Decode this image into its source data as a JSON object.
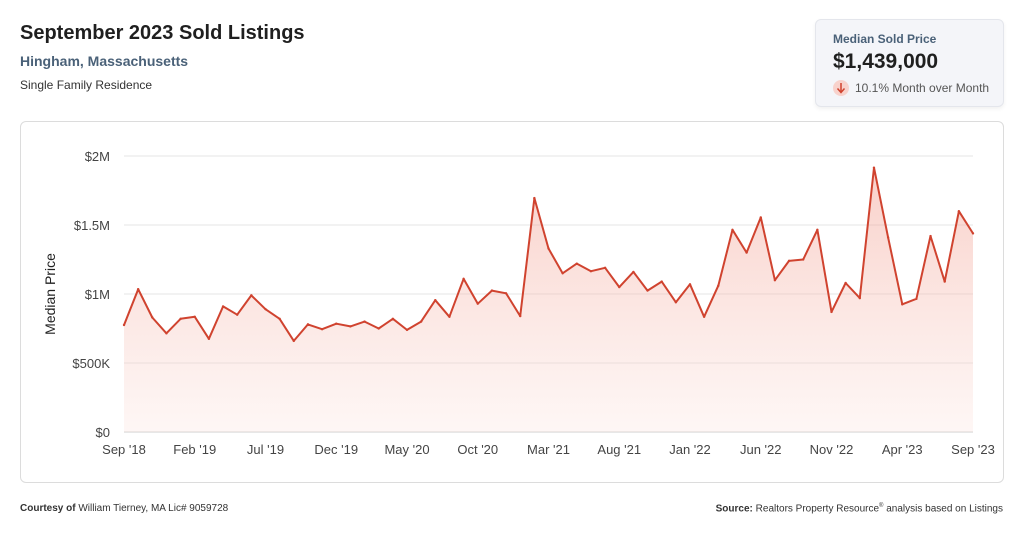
{
  "header": {
    "title": "September 2023 Sold Listings",
    "location": "Hingham, Massachusetts",
    "category": "Single Family Residence"
  },
  "kpi": {
    "label": "Median Sold Price",
    "value": "$1,439,000",
    "change": "10.1% Month over Month",
    "direction": "down",
    "icon": "arrow-down-icon"
  },
  "footer": {
    "courtesy_label": "Courtesy of",
    "courtesy_text": "William Tierney, MA Lic# 9059728",
    "source_label": "Source:",
    "source_text": "Realtors Property Resource",
    "source_mark": "®",
    "source_suffix": "analysis based on Listings"
  },
  "colors": {
    "line": "#d0432f",
    "fill": "#f6c9c1",
    "accent_text": "#4a6178"
  },
  "chart_data": {
    "type": "area",
    "title": "",
    "xlabel": "",
    "ylabel": "Median Price",
    "ylim": [
      0,
      2000000
    ],
    "y_ticks": [
      {
        "value": 0,
        "label": "$0"
      },
      {
        "value": 500000,
        "label": "$500K"
      },
      {
        "value": 1000000,
        "label": "$1M"
      },
      {
        "value": 1500000,
        "label": "$1.5M"
      },
      {
        "value": 2000000,
        "label": "$2M"
      }
    ],
    "x_tick_labels": [
      {
        "index": 0,
        "label": "Sep '18"
      },
      {
        "index": 5,
        "label": "Feb '19"
      },
      {
        "index": 10,
        "label": "Jul '19"
      },
      {
        "index": 15,
        "label": "Dec '19"
      },
      {
        "index": 20,
        "label": "May '20"
      },
      {
        "index": 25,
        "label": "Oct '20"
      },
      {
        "index": 30,
        "label": "Mar '21"
      },
      {
        "index": 35,
        "label": "Aug '21"
      },
      {
        "index": 40,
        "label": "Jan '22"
      },
      {
        "index": 45,
        "label": "Jun '22"
      },
      {
        "index": 50,
        "label": "Nov '22"
      },
      {
        "index": 55,
        "label": "Apr '23"
      },
      {
        "index": 60,
        "label": "Sep '23"
      }
    ],
    "grid": true,
    "legend": "none",
    "series": [
      {
        "values": [
          775000,
          1035000,
          830000,
          715000,
          820000,
          835000,
          675000,
          910000,
          850000,
          990000,
          890000,
          820000,
          660000,
          780000,
          745000,
          785000,
          765000,
          800000,
          750000,
          820000,
          740000,
          800000,
          955000,
          835000,
          1110000,
          930000,
          1025000,
          1005000,
          840000,
          1695000,
          1330000,
          1150000,
          1220000,
          1165000,
          1190000,
          1050000,
          1160000,
          1025000,
          1090000,
          940000,
          1070000,
          835000,
          1060000,
          1465000,
          1300000,
          1555000,
          1100000,
          1240000,
          1250000,
          1465000,
          870000,
          1080000,
          970000,
          1915000,
          1410000,
          925000,
          965000,
          1420000,
          1090000,
          1600000,
          1439000
        ]
      }
    ]
  }
}
